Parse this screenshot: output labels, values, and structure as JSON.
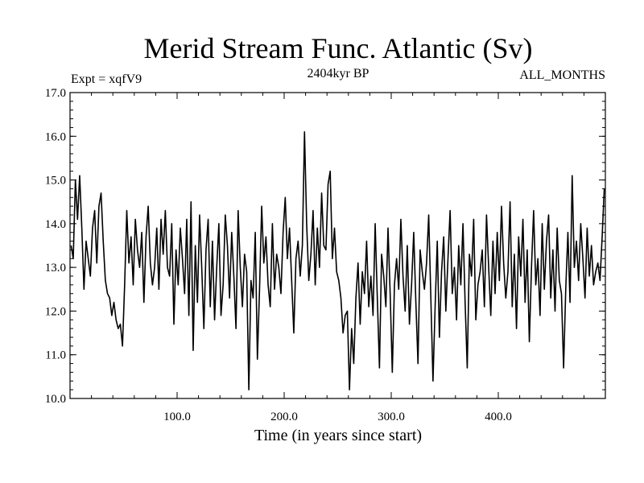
{
  "chart_data": {
    "type": "line",
    "title": "Merid Stream Func. Atlantic (Sv)",
    "subtitle_left": "Expt = xqfV9",
    "subtitle_center": "2404kyr BP",
    "subtitle_right": "ALL_MONTHS",
    "xlabel": "Time (in years since start)",
    "ylabel": "",
    "xlim": [
      0,
      500
    ],
    "ylim": [
      10.0,
      17.0
    ],
    "xticks": [
      100,
      200,
      300,
      400
    ],
    "xtick_labels": [
      "100.0",
      "200.0",
      "300.0",
      "400.0"
    ],
    "yticks": [
      10,
      11,
      12,
      13,
      14,
      15,
      16,
      17
    ],
    "ytick_labels": [
      "10.0",
      "11.0",
      "12.0",
      "13.0",
      "14.0",
      "15.0",
      "16.0",
      "17.0"
    ],
    "line_color": "#000000",
    "series": [
      {
        "name": "Merid Stream Func. Atlantic",
        "x": [
          1,
          3,
          5,
          7,
          9,
          11,
          13,
          15,
          17,
          19,
          21,
          23,
          25,
          27,
          29,
          31,
          33,
          35,
          37,
          39,
          41,
          43,
          45,
          47,
          49,
          51,
          53,
          55,
          57,
          59,
          61,
          63,
          65,
          67,
          69,
          71,
          73,
          75,
          77,
          79,
          81,
          83,
          85,
          87,
          89,
          91,
          93,
          95,
          97,
          99,
          101,
          103,
          105,
          107,
          109,
          111,
          113,
          115,
          117,
          119,
          121,
          123,
          125,
          127,
          129,
          131,
          133,
          135,
          137,
          139,
          141,
          143,
          145,
          147,
          149,
          151,
          153,
          155,
          157,
          159,
          161,
          163,
          165,
          167,
          169,
          171,
          173,
          175,
          177,
          179,
          181,
          183,
          185,
          187,
          189,
          191,
          193,
          195,
          197,
          199,
          201,
          203,
          205,
          207,
          209,
          211,
          213,
          215,
          217,
          219,
          221,
          223,
          225,
          227,
          229,
          231,
          233,
          235,
          237,
          239,
          241,
          243,
          245,
          247,
          249,
          251,
          253,
          255,
          257,
          259,
          261,
          263,
          265,
          267,
          269,
          271,
          273,
          275,
          277,
          279,
          281,
          283,
          285,
          287,
          289,
          291,
          293,
          295,
          297,
          299,
          301,
          303,
          305,
          307,
          309,
          311,
          313,
          315,
          317,
          319,
          321,
          323,
          325,
          327,
          329,
          331,
          333,
          335,
          337,
          339,
          341,
          343,
          345,
          347,
          349,
          351,
          353,
          355,
          357,
          359,
          361,
          363,
          365,
          367,
          369,
          371,
          373,
          375,
          377,
          379,
          381,
          383,
          385,
          387,
          389,
          391,
          393,
          395,
          397,
          399,
          401,
          403,
          405,
          407,
          409,
          411,
          413,
          415,
          417,
          419,
          421,
          423,
          425,
          427,
          429,
          431,
          433,
          435,
          437,
          439,
          441,
          443,
          445,
          447,
          449,
          451,
          453,
          455,
          457,
          459,
          461,
          463,
          465,
          467,
          469,
          471,
          473,
          475,
          477,
          479,
          481,
          483,
          485,
          487,
          489,
          491,
          493,
          495,
          497,
          499
        ],
        "values": [
          13.5,
          13.2,
          15.0,
          14.1,
          15.1,
          13.9,
          12.5,
          13.6,
          13.2,
          12.8,
          13.9,
          14.3,
          13.1,
          14.4,
          14.7,
          13.6,
          12.7,
          12.4,
          12.3,
          11.9,
          12.2,
          11.8,
          11.6,
          11.7,
          11.2,
          12.6,
          14.3,
          13.1,
          13.7,
          12.6,
          14.1,
          13.4,
          13.0,
          13.8,
          12.2,
          13.7,
          14.4,
          13.1,
          12.6,
          13.0,
          13.9,
          12.5,
          14.1,
          13.3,
          14.3,
          13.0,
          12.8,
          14.0,
          11.7,
          13.4,
          12.6,
          13.9,
          13.2,
          12.4,
          14.1,
          11.9,
          14.5,
          11.1,
          13.5,
          12.2,
          14.2,
          13.0,
          11.6,
          13.4,
          14.1,
          12.1,
          13.6,
          11.8,
          13.0,
          14.0,
          11.9,
          12.6,
          14.2,
          13.5,
          12.3,
          13.8,
          12.8,
          11.6,
          14.3,
          13.0,
          12.1,
          13.3,
          12.9,
          10.2,
          12.7,
          12.3,
          13.8,
          10.9,
          12.5,
          14.4,
          13.1,
          13.7,
          12.6,
          12.1,
          14.0,
          12.5,
          13.3,
          13.0,
          12.4,
          13.8,
          14.6,
          13.2,
          13.9,
          12.7,
          11.5,
          13.2,
          13.6,
          12.8,
          13.5,
          16.1,
          14.0,
          12.7,
          13.3,
          14.3,
          12.6,
          13.9,
          13.0,
          14.7,
          13.5,
          13.4,
          14.9,
          15.2,
          13.2,
          13.9,
          12.9,
          12.7,
          12.3,
          11.5,
          11.9,
          12.0,
          10.2,
          11.6,
          10.8,
          12.3,
          13.1,
          11.7,
          12.9,
          12.4,
          13.6,
          12.1,
          12.8,
          11.9,
          14.0,
          12.3,
          10.7,
          13.3,
          12.8,
          12.1,
          13.9,
          12.4,
          10.6,
          12.6,
          13.2,
          12.5,
          14.1,
          12.8,
          12.0,
          13.5,
          11.7,
          12.6,
          13.8,
          12.2,
          10.8,
          13.4,
          12.9,
          12.5,
          13.1,
          14.2,
          12.3,
          10.4,
          12.1,
          13.6,
          11.4,
          12.9,
          13.7,
          12.0,
          13.2,
          14.3,
          12.4,
          13.0,
          11.8,
          13.5,
          12.6,
          14.0,
          12.2,
          10.7,
          13.3,
          12.8,
          14.1,
          11.8,
          12.6,
          12.9,
          13.4,
          12.1,
          14.2,
          13.0,
          11.9,
          13.6,
          12.4,
          13.8,
          12.7,
          14.4,
          13.1,
          12.3,
          12.9,
          14.5,
          12.1,
          13.3,
          11.6,
          13.7,
          12.8,
          14.1,
          12.2,
          13.4,
          11.3,
          13.0,
          14.3,
          12.6,
          13.2,
          11.9,
          14.0,
          12.5,
          13.6,
          14.2,
          12.3,
          13.4,
          12.0,
          13.9,
          12.7,
          12.4,
          10.7,
          12.5,
          13.8,
          12.2,
          15.1,
          13.0,
          13.6,
          12.7,
          14.0,
          13.2,
          12.3,
          13.9,
          12.8,
          13.5,
          12.6,
          12.9,
          13.1,
          12.7,
          13.7,
          14.8
        ]
      }
    ]
  }
}
